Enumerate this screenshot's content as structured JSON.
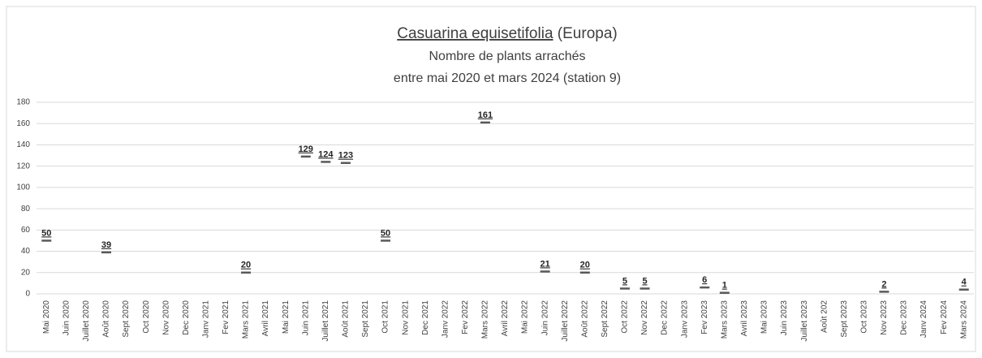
{
  "chart_data": {
    "type": "scatter",
    "title": [
      "Casuarina equisetifolia",
      "(Europa)"
    ],
    "subtitle": [
      "Nombre de plants arrachés",
      "entre mai 2020 et mars 2024 (station 9)"
    ],
    "categories": [
      "Mai 2020",
      "Juin 2020",
      "Juillet 2020",
      "Août 2020",
      "Sept 2020",
      "Oct 2020",
      "Nov 2020",
      "Dec 2020",
      "Janv 2021",
      "Fev 2021",
      "Mars 2021",
      "Avril 2021",
      "Mai 2021",
      "Juin 2021",
      "Juillet 2021",
      "Août 2021",
      "Sept 2021",
      "Oct 2021",
      "Nov 2021",
      "Dec 2021",
      "Janv 2022",
      "Fev 2022",
      "Mars 2022",
      "Avril 2022",
      "Mai 2022",
      "Juin 2022",
      "Juillet 2022",
      "Août 2022",
      "Sept 2022",
      "Oct 2022",
      "Nov 2022",
      "Dec 2022",
      "Janv 2023",
      "Fev 2023",
      "Mars 2023",
      "Avril 2023",
      "Mai 2023",
      "Juin 2023",
      "Juillet 2023",
      "Août 202",
      "Sept 2023",
      "Oct 2023",
      "Nov 2023",
      "Dec 2023",
      "Janv 2024",
      "Fev 2024",
      "Mars 2024"
    ],
    "values": [
      50,
      null,
      null,
      39,
      null,
      null,
      null,
      null,
      null,
      null,
      20,
      null,
      null,
      129,
      124,
      123,
      null,
      50,
      null,
      null,
      null,
      null,
      161,
      null,
      null,
      21,
      null,
      20,
      null,
      5,
      5,
      null,
      null,
      6,
      1,
      null,
      null,
      null,
      null,
      null,
      null,
      null,
      2,
      null,
      null,
      null,
      4
    ],
    "color": "#595959",
    "ylim": [
      0,
      180
    ],
    "yticks": [
      0,
      20,
      40,
      60,
      80,
      100,
      120,
      140,
      160,
      180
    ],
    "grid": true
  }
}
